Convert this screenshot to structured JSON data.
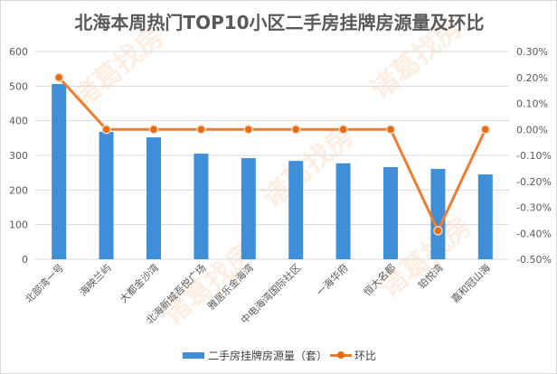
{
  "watermark": "诸葛找房",
  "chart_data": {
    "type": "bar",
    "title": "北海本周热门TOP10小区二手房挂牌房源量及环比",
    "categories": [
      "北部湾一号",
      "海映兰屿",
      "大都金沙湾",
      "北海新城吾悦广场",
      "雅居乐金海湾",
      "中电海湾国际社区",
      "一海华府",
      "恒大名都",
      "铂悦湾",
      "嘉和冠山海"
    ],
    "series": [
      {
        "name": "二手房挂牌房源量（套）",
        "type": "bar",
        "axis": "left",
        "color": "#3f8fd8",
        "values": [
          506,
          368,
          352,
          305,
          292,
          284,
          277,
          266,
          261,
          245
        ]
      },
      {
        "name": "环比",
        "type": "line",
        "axis": "right",
        "color": "#ed7d31",
        "values": [
          0.2,
          0,
          0,
          0,
          0,
          0,
          0,
          0,
          -0.39,
          0
        ]
      }
    ],
    "ylim": [
      0,
      600
    ],
    "yticks": [
      "0",
      "100",
      "200",
      "300",
      "400",
      "500",
      "600"
    ],
    "y2lim": [
      -0.5,
      0.3
    ],
    "y2ticks": [
      "-0.50%",
      "-0.40%",
      "-0.30%",
      "-0.20%",
      "-0.10%",
      "0.00%",
      "0.10%",
      "0.20%",
      "0.30%"
    ],
    "grid": true,
    "legend": "bottom"
  }
}
